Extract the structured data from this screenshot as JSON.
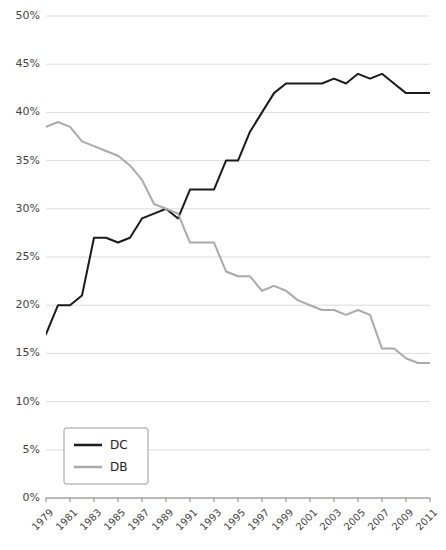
{
  "chart_data": {
    "type": "line",
    "x": [
      1979,
      1980,
      1981,
      1982,
      1983,
      1984,
      1985,
      1986,
      1987,
      1988,
      1989,
      1990,
      1991,
      1992,
      1993,
      1994,
      1995,
      1996,
      1997,
      1998,
      1999,
      2000,
      2001,
      2002,
      2003,
      2004,
      2005,
      2006,
      2007,
      2008,
      2009,
      2010,
      2011
    ],
    "series": [
      {
        "name": "DC",
        "color": "#1a1a1a",
        "values": [
          0.17,
          0.2,
          0.2,
          0.21,
          0.27,
          0.27,
          0.265,
          0.27,
          0.29,
          0.295,
          0.3,
          0.29,
          0.32,
          0.32,
          0.32,
          0.35,
          0.35,
          0.38,
          0.4,
          0.42,
          0.43,
          0.43,
          0.43,
          0.43,
          0.435,
          0.43,
          0.44,
          0.435,
          0.44,
          0.43,
          0.42,
          0.42,
          0.42
        ]
      },
      {
        "name": "DB",
        "color": "#aaaaaa",
        "values": [
          0.385,
          0.39,
          0.385,
          0.37,
          0.365,
          0.36,
          0.355,
          0.345,
          0.33,
          0.305,
          0.3,
          0.295,
          0.265,
          0.265,
          0.265,
          0.235,
          0.23,
          0.23,
          0.215,
          0.22,
          0.215,
          0.205,
          0.2,
          0.195,
          0.195,
          0.19,
          0.195,
          0.19,
          0.155,
          0.155,
          0.145,
          0.14,
          0.14
        ]
      }
    ],
    "xlim": [
      1979,
      2011
    ],
    "xticks": [
      1979,
      1981,
      1983,
      1985,
      1987,
      1989,
      1991,
      1993,
      1995,
      1997,
      1999,
      2001,
      2003,
      2005,
      2007,
      2009,
      2011
    ],
    "ylim": [
      0,
      0.5
    ],
    "yticks": [
      {
        "value": 0.0,
        "label": "0%"
      },
      {
        "value": 0.05,
        "label": "5%"
      },
      {
        "value": 0.1,
        "label": "10%"
      },
      {
        "value": 0.15,
        "label": "15%"
      },
      {
        "value": 0.2,
        "label": "20%"
      },
      {
        "value": 0.25,
        "label": "25%"
      },
      {
        "value": 0.3,
        "label": "30%"
      },
      {
        "value": 0.35,
        "label": "35%"
      },
      {
        "value": 0.4,
        "label": "40%"
      },
      {
        "value": 0.45,
        "label": "45%"
      },
      {
        "value": 0.5,
        "label": "50%"
      }
    ],
    "grid": true,
    "legend": "lower left"
  }
}
